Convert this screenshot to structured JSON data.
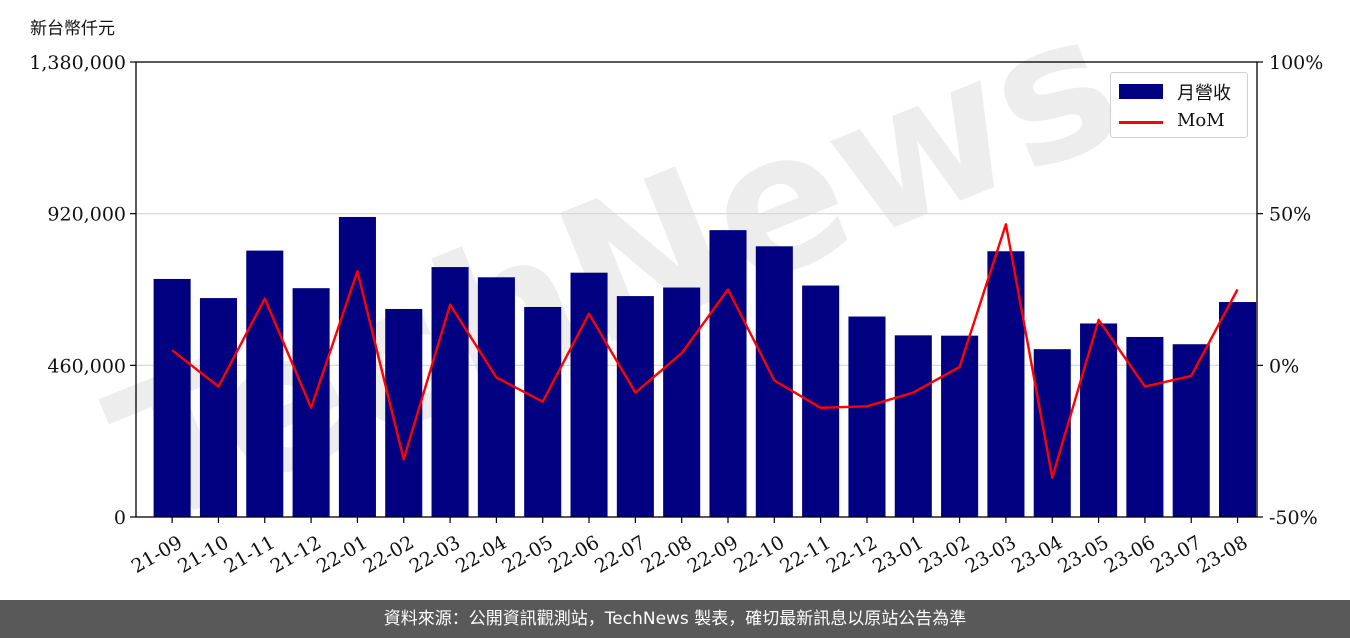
{
  "chart_data": {
    "type": "bar",
    "y_unit_label": "新台幣仟元",
    "categories": [
      "21-09",
      "21-10",
      "21-11",
      "21-12",
      "22-01",
      "22-02",
      "22-03",
      "22-04",
      "22-05",
      "22-06",
      "22-07",
      "22-08",
      "22-09",
      "22-10",
      "22-11",
      "22-12",
      "23-01",
      "23-02",
      "23-03",
      "23-04",
      "23-05",
      "23-06",
      "23-07",
      "23-08"
    ],
    "series": [
      {
        "name": "月營收",
        "type": "bar",
        "axis": "left",
        "color": "#000080",
        "values": [
          722000,
          664000,
          808000,
          694000,
          910000,
          631000,
          758000,
          727000,
          637000,
          741000,
          670000,
          696000,
          870000,
          821000,
          702000,
          608000,
          551000,
          550000,
          806000,
          509000,
          587000,
          546000,
          524000,
          652000
        ]
      },
      {
        "name": "MoM",
        "type": "line",
        "axis": "right",
        "color": "#ff0000",
        "values": [
          5,
          -7,
          22,
          -14,
          31,
          -31,
          20,
          -4,
          -12,
          17,
          -9,
          4,
          25,
          -5,
          -14,
          -13.5,
          -9,
          -0.5,
          46.5,
          -37,
          15,
          -7,
          -3.5,
          25
        ]
      }
    ],
    "ylim": [
      0,
      1380000
    ],
    "yticks": [
      0,
      460000,
      920000,
      1380000
    ],
    "ytick_labels": [
      "0",
      "460,000",
      "920,000",
      "1,380,000"
    ],
    "y2lim": [
      -50,
      100
    ],
    "y2ticks": [
      -50,
      0,
      50,
      100
    ],
    "y2tick_labels": [
      "-50%",
      "0%",
      "50%",
      "100%"
    ],
    "grid": "horizontal",
    "legend_placement": "top-right",
    "watermark": "TechNews"
  },
  "footer": {
    "source_text": "資料來源：公開資訊觀測站，TechNews 製表，確切最新訊息以原站公告為準"
  }
}
